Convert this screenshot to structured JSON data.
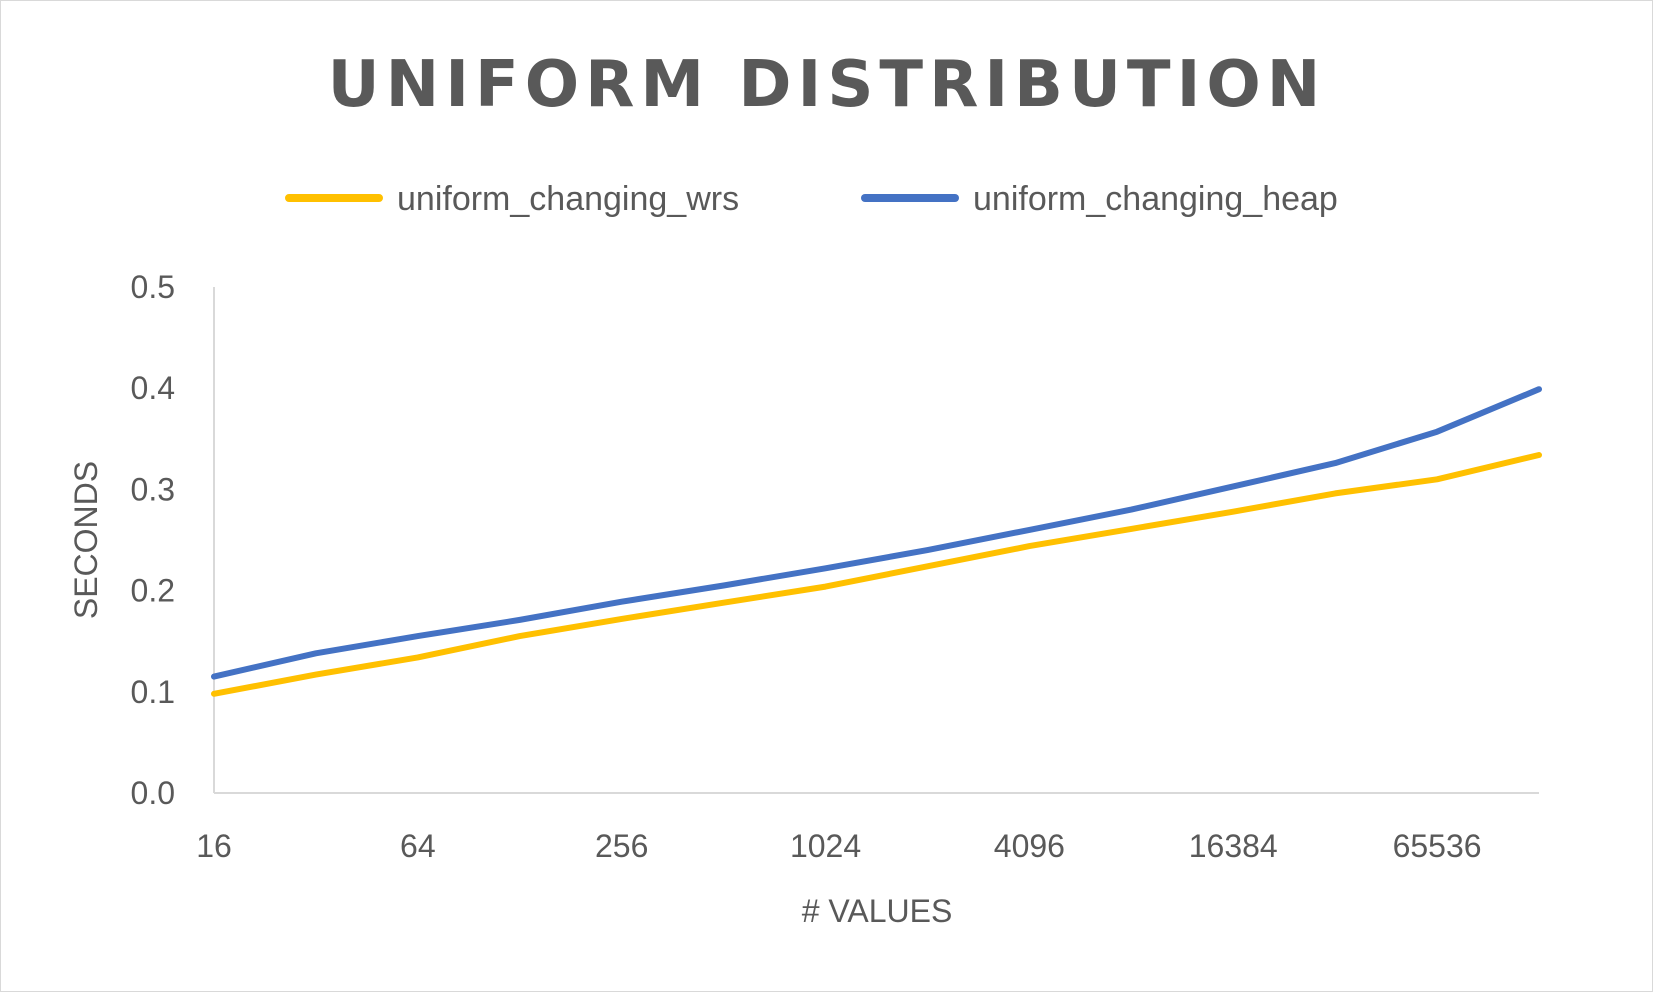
{
  "chart_data": {
    "type": "line",
    "title": "UNIFORM DISTRIBUTION",
    "xlabel": "# VALUES",
    "ylabel": "SECONDS",
    "x": [
      16,
      32,
      64,
      128,
      256,
      512,
      1024,
      2048,
      4096,
      8192,
      16384,
      32768,
      65536,
      131072
    ],
    "xticks": [
      "16",
      "64",
      "256",
      "1024",
      "4096",
      "16384",
      "65536"
    ],
    "yticks": [
      "0.0",
      "0.1",
      "0.2",
      "0.3",
      "0.4",
      "0.5"
    ],
    "ylim": [
      0,
      0.5
    ],
    "grid": false,
    "legend": "top",
    "series": [
      {
        "name": "uniform_changing_wrs",
        "color": "#ffc000",
        "values": [
          0.098,
          0.117,
          0.134,
          0.155,
          0.172,
          0.188,
          0.204,
          0.224,
          0.244,
          0.261,
          0.278,
          0.296,
          0.31,
          0.334
        ]
      },
      {
        "name": "uniform_changing_heap",
        "color": "#4472c4",
        "values": [
          0.115,
          0.138,
          0.155,
          0.171,
          0.189,
          0.205,
          0.222,
          0.24,
          0.26,
          0.28,
          0.303,
          0.326,
          0.357,
          0.399
        ]
      }
    ]
  }
}
